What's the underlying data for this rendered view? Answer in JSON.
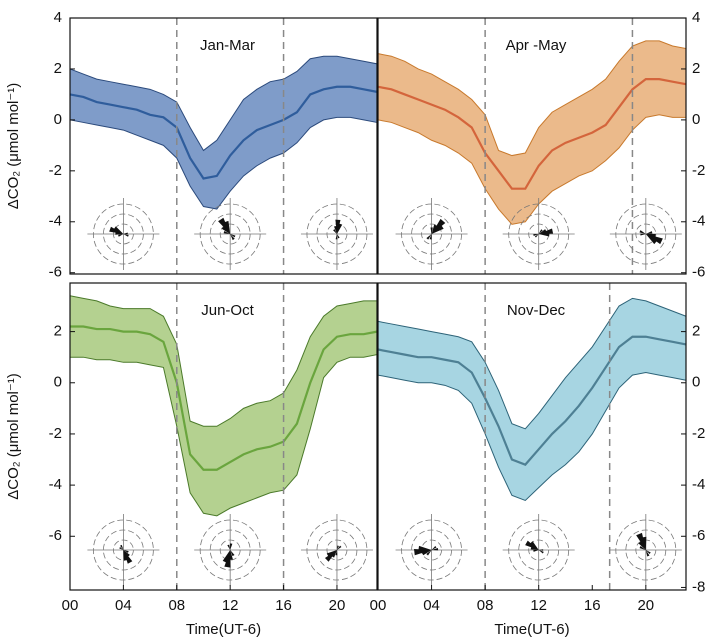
{
  "chart_data": [
    {
      "type": "band-line",
      "title": "Jan-Mar",
      "y_label": "ΔCO₂ (μmol mol⁻¹)",
      "yaxis_side": "left",
      "x": [
        0,
        1,
        2,
        3,
        4,
        5,
        6,
        7,
        8,
        9,
        10,
        11,
        12,
        13,
        14,
        15,
        16,
        17,
        18,
        19,
        20,
        21,
        22,
        23
      ],
      "mean": [
        1.0,
        0.9,
        0.7,
        0.6,
        0.5,
        0.4,
        0.2,
        0.1,
        -0.3,
        -1.5,
        -2.3,
        -2.2,
        -1.4,
        -0.8,
        -0.4,
        -0.2,
        0.0,
        0.3,
        1.0,
        1.2,
        1.3,
        1.3,
        1.2,
        1.1
      ],
      "upper": [
        2.0,
        1.8,
        1.6,
        1.5,
        1.4,
        1.3,
        1.2,
        1.0,
        0.7,
        -0.3,
        -1.2,
        -0.8,
        0.0,
        0.8,
        1.2,
        1.5,
        1.6,
        1.9,
        2.4,
        2.5,
        2.5,
        2.4,
        2.3,
        2.2
      ],
      "lower": [
        0.0,
        -0.1,
        -0.2,
        -0.3,
        -0.4,
        -0.6,
        -0.8,
        -1.0,
        -1.5,
        -2.6,
        -3.4,
        -3.5,
        -2.8,
        -2.2,
        -1.8,
        -1.5,
        -1.3,
        -0.9,
        -0.3,
        0.0,
        0.1,
        0.1,
        0.0,
        -0.1
      ],
      "color": "#7f9cc9",
      "line_color": "#2f5d9c",
      "edge_color": "#2b4a7c",
      "vlines": [
        8,
        16
      ],
      "xlim": [
        0,
        23
      ],
      "ylim": [
        -6.05,
        4
      ],
      "yticks": [
        4,
        2,
        0,
        -2,
        -4,
        -6
      ]
    },
    {
      "type": "band-line",
      "title": "Apr -May",
      "yaxis_side": "right",
      "x": [
        0,
        1,
        2,
        3,
        4,
        5,
        6,
        7,
        8,
        9,
        10,
        11,
        12,
        13,
        14,
        15,
        16,
        17,
        18,
        19,
        20,
        21,
        22,
        23
      ],
      "mean": [
        1.3,
        1.2,
        1.0,
        0.8,
        0.6,
        0.4,
        0.1,
        -0.3,
        -1.3,
        -2.0,
        -2.7,
        -2.7,
        -1.8,
        -1.2,
        -0.9,
        -0.7,
        -0.5,
        -0.2,
        0.5,
        1.2,
        1.6,
        1.6,
        1.5,
        1.4
      ],
      "upper": [
        2.6,
        2.5,
        2.3,
        2.0,
        1.8,
        1.5,
        1.2,
        0.8,
        0.2,
        -1.2,
        -1.4,
        -1.3,
        -0.3,
        0.3,
        0.6,
        0.9,
        1.2,
        1.6,
        2.3,
        2.9,
        3.1,
        3.1,
        2.9,
        2.8
      ],
      "lower": [
        0.0,
        -0.1,
        -0.3,
        -0.5,
        -0.8,
        -1.0,
        -1.3,
        -1.7,
        -2.7,
        -3.5,
        -4.1,
        -4.0,
        -3.3,
        -2.8,
        -2.5,
        -2.2,
        -2.0,
        -1.6,
        -1.1,
        -0.4,
        0.1,
        0.2,
        0.1,
        0.1
      ],
      "color": "#ebba8b",
      "line_color": "#d4653c",
      "edge_color": "#c8792c",
      "vlines": [
        8,
        19
      ],
      "xlim": [
        0,
        23
      ],
      "ylim": [
        -6.05,
        4
      ],
      "yticks": [
        4,
        2,
        0,
        -2,
        -4,
        -6
      ]
    },
    {
      "type": "band-line",
      "title": "Jun-Oct",
      "y_label": "ΔCO₂ (μmol mol⁻¹)",
      "x_label": "Time(UT-6)",
      "yaxis_side": "left",
      "x": [
        0,
        1,
        2,
        3,
        4,
        5,
        6,
        7,
        8,
        9,
        10,
        11,
        12,
        13,
        14,
        15,
        16,
        17,
        18,
        19,
        20,
        21,
        22,
        23
      ],
      "mean": [
        2.2,
        2.2,
        2.1,
        2.1,
        2.0,
        2.0,
        1.9,
        1.6,
        0.0,
        -2.8,
        -3.4,
        -3.4,
        -3.1,
        -2.8,
        -2.6,
        -2.5,
        -2.3,
        -1.6,
        0.0,
        1.3,
        1.8,
        1.9,
        1.9,
        2.0
      ],
      "upper": [
        3.4,
        3.3,
        3.2,
        3.0,
        2.9,
        2.9,
        2.9,
        2.6,
        1.5,
        -1.5,
        -1.7,
        -1.7,
        -1.4,
        -1.0,
        -0.8,
        -0.7,
        -0.4,
        0.5,
        1.8,
        2.6,
        3.0,
        3.1,
        3.2,
        3.2
      ],
      "lower": [
        1.0,
        1.0,
        0.9,
        0.9,
        0.8,
        0.8,
        0.7,
        0.6,
        -1.7,
        -4.3,
        -5.1,
        -5.2,
        -4.9,
        -4.7,
        -4.5,
        -4.3,
        -4.2,
        -3.6,
        -1.8,
        0.2,
        0.8,
        1.0,
        1.0,
        1.1
      ],
      "color": "#b4d190",
      "line_color": "#6aa53e",
      "edge_color": "#4b7a2a",
      "vlines": [
        8,
        16
      ],
      "xlim": [
        0,
        23
      ],
      "ylim": [
        -8.1,
        3.9
      ],
      "yticks": [
        2,
        0,
        -2,
        -4,
        -6
      ],
      "xticks": [
        {
          "value": 0,
          "label": "00"
        },
        {
          "value": 4,
          "label": "04"
        },
        {
          "value": 8,
          "label": "08"
        },
        12,
        16,
        20
      ]
    },
    {
      "type": "band-line",
      "title": "Nov-Dec",
      "x_label": "Time(UT-6)",
      "yaxis_side": "right",
      "x": [
        0,
        1,
        2,
        3,
        4,
        5,
        6,
        7,
        8,
        9,
        10,
        11,
        12,
        13,
        14,
        15,
        16,
        17,
        18,
        19,
        20,
        21,
        22,
        23
      ],
      "mean": [
        1.3,
        1.2,
        1.1,
        1.0,
        1.0,
        0.9,
        0.8,
        0.4,
        -0.6,
        -1.7,
        -3.0,
        -3.2,
        -2.6,
        -2.0,
        -1.5,
        -0.9,
        -0.2,
        0.6,
        1.4,
        1.8,
        1.8,
        1.7,
        1.6,
        1.5
      ],
      "upper": [
        2.4,
        2.3,
        2.2,
        2.1,
        2.0,
        1.9,
        1.8,
        1.6,
        0.8,
        -0.3,
        -1.6,
        -1.8,
        -1.2,
        -0.5,
        0.2,
        0.8,
        1.4,
        2.2,
        3.0,
        3.3,
        3.2,
        3.0,
        2.8,
        2.6
      ],
      "lower": [
        0.3,
        0.2,
        0.1,
        0.0,
        0.0,
        -0.1,
        -0.3,
        -0.8,
        -2.0,
        -3.3,
        -4.4,
        -4.6,
        -4.1,
        -3.6,
        -3.2,
        -2.7,
        -2.0,
        -1.1,
        -0.2,
        0.3,
        0.4,
        0.3,
        0.2,
        0.1
      ],
      "color": "#a7d5e2",
      "line_color": "#4e8094",
      "edge_color": "#2d6378",
      "vlines": [
        8,
        17.3
      ],
      "xlim": [
        0,
        23
      ],
      "ylim": [
        -8.1,
        3.9
      ],
      "yticks": [
        2,
        0,
        -2,
        -4,
        -6,
        -8
      ],
      "xticks": [
        {
          "value": 0,
          "label": "00"
        },
        {
          "value": 4,
          "label": "04"
        },
        {
          "value": 8,
          "label": "08"
        },
        12,
        16,
        20
      ]
    }
  ]
}
